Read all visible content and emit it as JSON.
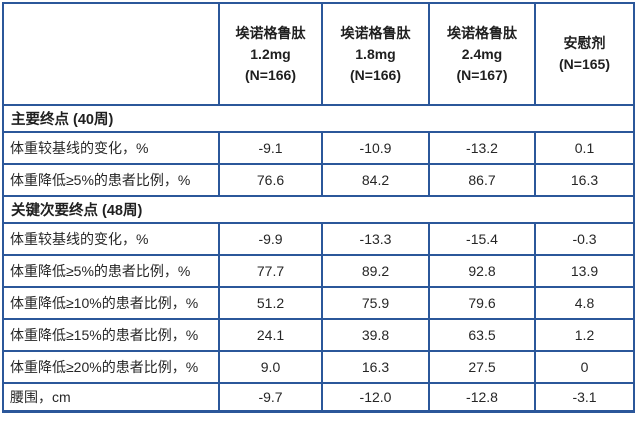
{
  "colors": {
    "border": "#2B579A",
    "text": "#262626"
  },
  "chart_data": {
    "type": "table",
    "title": "",
    "columns": [
      {
        "drug": "埃诺格鲁肽",
        "dose": "1.2mg",
        "n": "(N=166)"
      },
      {
        "drug": "埃诺格鲁肽",
        "dose": "1.8mg",
        "n": "(N=166)"
      },
      {
        "drug": "埃诺格鲁肽",
        "dose": "2.4mg",
        "n": "(N=167)"
      },
      {
        "drug": "安慰剂",
        "dose": "",
        "n": "(N=165)"
      }
    ],
    "sections": [
      {
        "title": "主要终点 (40周)",
        "rows": [
          {
            "label": "体重较基线的变化，%",
            "values": [
              "-9.1",
              "-10.9",
              "-13.2",
              "0.1"
            ]
          },
          {
            "label": "体重降低≥5%的患者比例，%",
            "values": [
              "76.6",
              "84.2",
              "86.7",
              "16.3"
            ]
          }
        ]
      },
      {
        "title": "关键次要终点 (48周)",
        "rows": [
          {
            "label": "体重较基线的变化，%",
            "values": [
              "-9.9",
              "-13.3",
              "-15.4",
              "-0.3"
            ]
          },
          {
            "label": "体重降低≥5%的患者比例，%",
            "values": [
              "77.7",
              "89.2",
              "92.8",
              "13.9"
            ]
          },
          {
            "label": "体重降低≥10%的患者比例，%",
            "values": [
              "51.2",
              "75.9",
              "79.6",
              "4.8"
            ]
          },
          {
            "label": "体重降低≥15%的患者比例，%",
            "values": [
              "24.1",
              "39.8",
              "63.5",
              "1.2"
            ]
          },
          {
            "label": "体重降低≥20%的患者比例，%",
            "values": [
              "9.0",
              "16.3",
              "27.5",
              "0"
            ]
          }
        ]
      },
      {
        "title": "",
        "rows": [
          {
            "label": "腰围，cm",
            "values": [
              "-9.7",
              "-12.0",
              "-12.8",
              "-3.1"
            ]
          }
        ]
      }
    ]
  }
}
